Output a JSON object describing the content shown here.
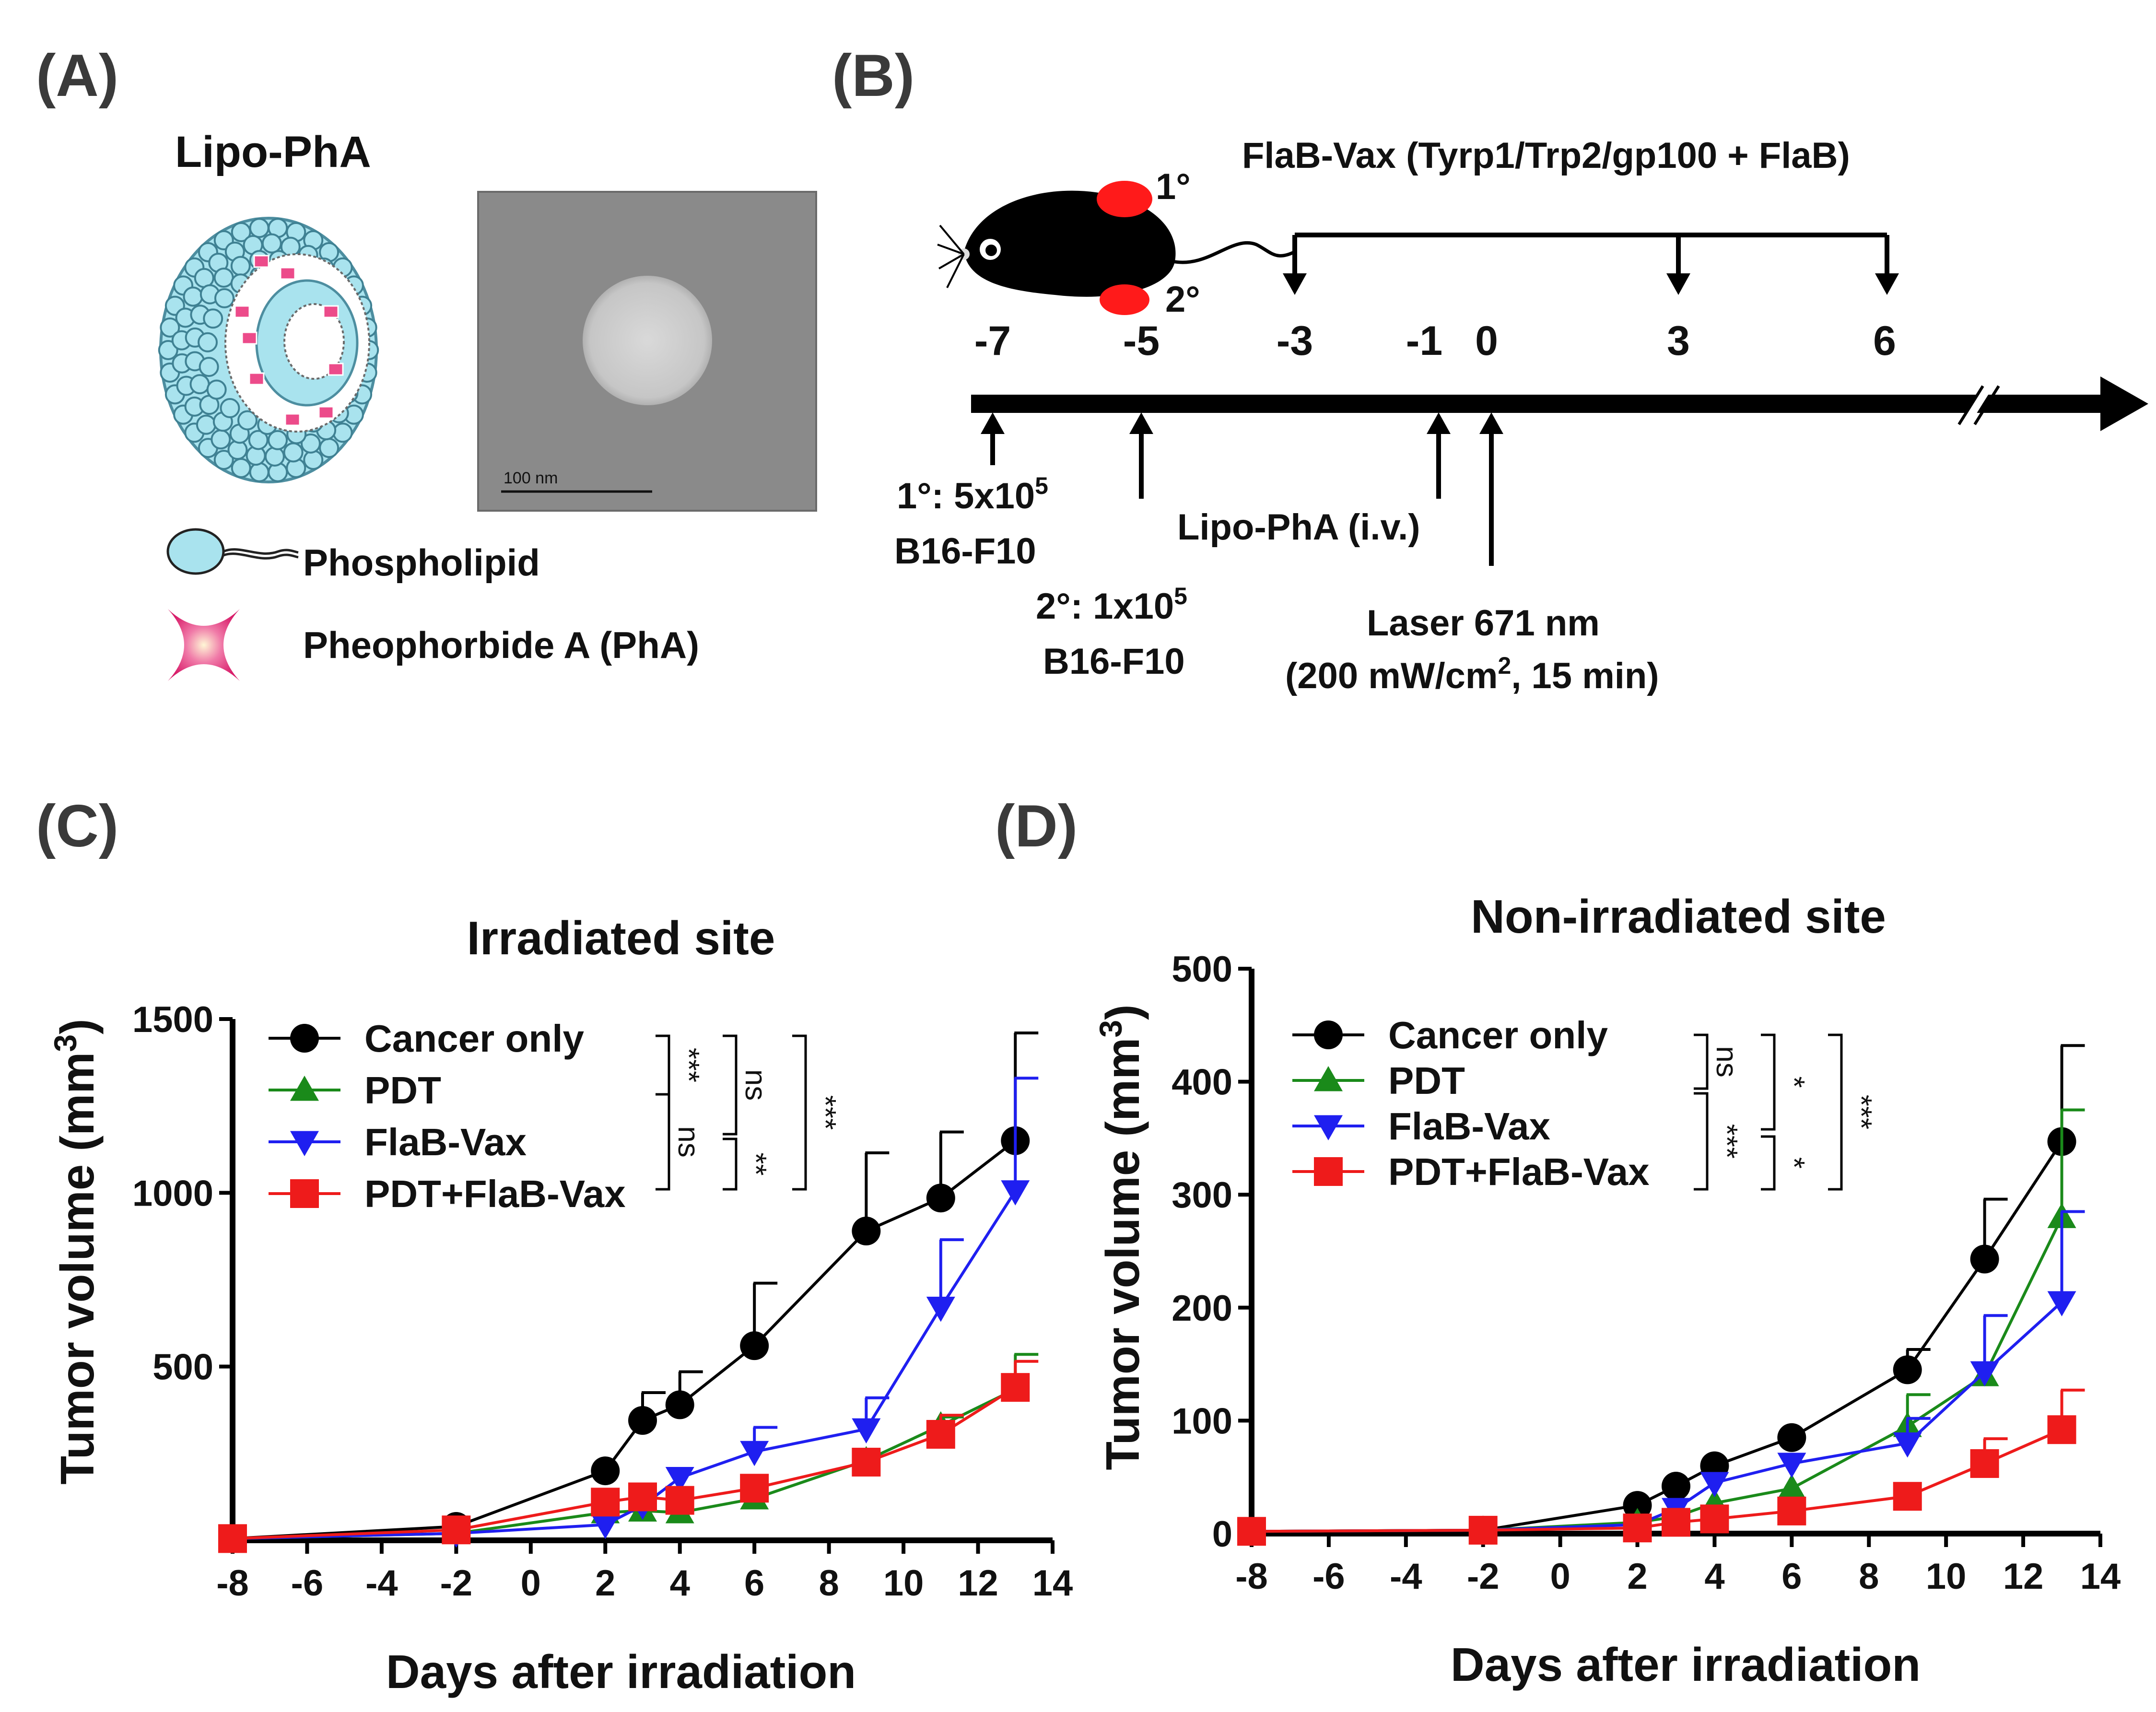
{
  "panels": {
    "A": {
      "label": "(A)",
      "title": "Lipo-PhA",
      "scale_bar": "100 nm",
      "legend": [
        {
          "text": "Phospholipid",
          "icon": "phospholipid-icon"
        },
        {
          "text": "Pheophorbide A (PhA)",
          "icon": "pha-icon"
        }
      ]
    },
    "B": {
      "label": "(B)",
      "vaccine": "FlaB-Vax (Tyrp1/Trp2/gp100 + FlaB)",
      "site1": "1°",
      "site2": "2°",
      "days": [
        "-7",
        "-5",
        "-3",
        "-1",
        "0",
        "3",
        "6"
      ],
      "primary_line1": "1°: 5x10",
      "primary_sup": "5",
      "primary_line2": "B16-F10",
      "secondary_line1": "2°: 1x10",
      "secondary_sup": "5",
      "secondary_line2": "B16-F10",
      "lipo": "Lipo-PhA (i.v.)",
      "laser_line1": "Laser 671 nm",
      "laser_line2a": "(200 mW/cm",
      "laser_sup": "2",
      "laser_line2b": ", 15 min)"
    },
    "C": {
      "label": "(C)"
    },
    "D": {
      "label": "(D)"
    }
  },
  "colors": {
    "cancer": "#000000",
    "pdt": "#1a8a1a",
    "vax": "#1f1ff0",
    "combo": "#ee1b1b",
    "lipid": "#a9e3ee",
    "pha": "#e8337a"
  },
  "chart_data": [
    {
      "type": "line",
      "title": "Irradiated site",
      "xlabel": "Days after irradiation",
      "ylabel": "Tumor volume (mm",
      "ylabel_sup": "3",
      "ylabel_end": ")",
      "xlim": [
        -8,
        14
      ],
      "ylim": [
        0,
        1500
      ],
      "xticks": [
        -8,
        -6,
        -4,
        -2,
        0,
        2,
        4,
        6,
        8,
        10,
        12,
        14
      ],
      "yticks": [
        500,
        1000,
        1500
      ],
      "series": [
        {
          "name": "Cancer only",
          "marker": "circle",
          "color": "#000000",
          "x": [
            -8,
            -2,
            2,
            3,
            4,
            6,
            9,
            11,
            13
          ],
          "y": [
            5,
            40,
            200,
            345,
            390,
            560,
            890,
            985,
            1150
          ],
          "err": [
            0,
            0,
            0,
            80,
            95,
            180,
            225,
            190,
            310
          ]
        },
        {
          "name": "PDT",
          "marker": "triangle-up",
          "color": "#1a8a1a",
          "x": [
            -8,
            -2,
            2,
            3,
            4,
            6,
            9,
            11,
            13
          ],
          "y": [
            5,
            20,
            80,
            85,
            80,
            120,
            230,
            330,
            435
          ],
          "err": [
            0,
            0,
            0,
            0,
            0,
            0,
            0,
            25,
            100
          ]
        },
        {
          "name": "FlaB-Vax",
          "marker": "triangle-down",
          "color": "#1f1ff0",
          "x": [
            -8,
            -2,
            2,
            3,
            4,
            6,
            9,
            11,
            13
          ],
          "y": [
            5,
            20,
            45,
            100,
            180,
            255,
            320,
            670,
            1005
          ],
          "err": [
            0,
            0,
            0,
            0,
            0,
            70,
            90,
            195,
            325
          ]
        },
        {
          "name": "PDT+FlaB-Vax",
          "marker": "square",
          "color": "#ee1b1b",
          "x": [
            -8,
            -2,
            2,
            3,
            4,
            6,
            9,
            11,
            13
          ],
          "y": [
            5,
            30,
            110,
            125,
            115,
            150,
            225,
            305,
            440
          ],
          "err": [
            0,
            0,
            0,
            0,
            0,
            0,
            0,
            55,
            75
          ]
        }
      ],
      "significance": [
        "***",
        "ns",
        "ns",
        "**",
        "***"
      ]
    },
    {
      "type": "line",
      "title": "Non-irradiated site",
      "xlabel": "Days after irradiation",
      "ylabel": "Tumor volume (mm",
      "ylabel_sup": "3",
      "ylabel_end": ")",
      "xlim": [
        -8,
        14
      ],
      "ylim": [
        0,
        500
      ],
      "xticks": [
        -8,
        -6,
        -4,
        -2,
        0,
        2,
        4,
        6,
        8,
        10,
        12,
        14
      ],
      "yticks": [
        0,
        100,
        200,
        300,
        400,
        500
      ],
      "series": [
        {
          "name": "Cancer only",
          "marker": "circle",
          "color": "#000000",
          "x": [
            -8,
            -2,
            2,
            3,
            4,
            6,
            9,
            11,
            13
          ],
          "y": [
            2,
            3,
            25,
            42,
            60,
            85,
            145,
            243,
            347
          ],
          "err": [
            0,
            0,
            0,
            0,
            0,
            0,
            18,
            53,
            85
          ]
        },
        {
          "name": "PDT",
          "marker": "triangle-up",
          "color": "#1a8a1a",
          "x": [
            -8,
            -2,
            2,
            3,
            4,
            6,
            9,
            11,
            13
          ],
          "y": [
            2,
            3,
            10,
            15,
            27,
            40,
            95,
            140,
            280
          ],
          "err": [
            0,
            0,
            0,
            0,
            0,
            0,
            28,
            0,
            95
          ]
        },
        {
          "name": "FlaB-Vax",
          "marker": "triangle-down",
          "color": "#1f1ff0",
          "x": [
            -8,
            -2,
            2,
            3,
            4,
            6,
            9,
            11,
            13
          ],
          "y": [
            2,
            3,
            8,
            22,
            45,
            62,
            80,
            143,
            205
          ],
          "err": [
            0,
            0,
            0,
            0,
            0,
            0,
            22,
            50,
            80
          ]
        },
        {
          "name": "PDT+FlaB-Vax",
          "marker": "square",
          "color": "#ee1b1b",
          "x": [
            -8,
            -2,
            2,
            3,
            4,
            6,
            9,
            11,
            13
          ],
          "y": [
            2,
            3,
            5,
            10,
            13,
            20,
            33,
            62,
            92
          ],
          "err": [
            0,
            0,
            0,
            0,
            0,
            0,
            0,
            22,
            35
          ]
        }
      ],
      "significance": [
        "ns",
        "*",
        "***",
        "*",
        "***"
      ]
    }
  ]
}
